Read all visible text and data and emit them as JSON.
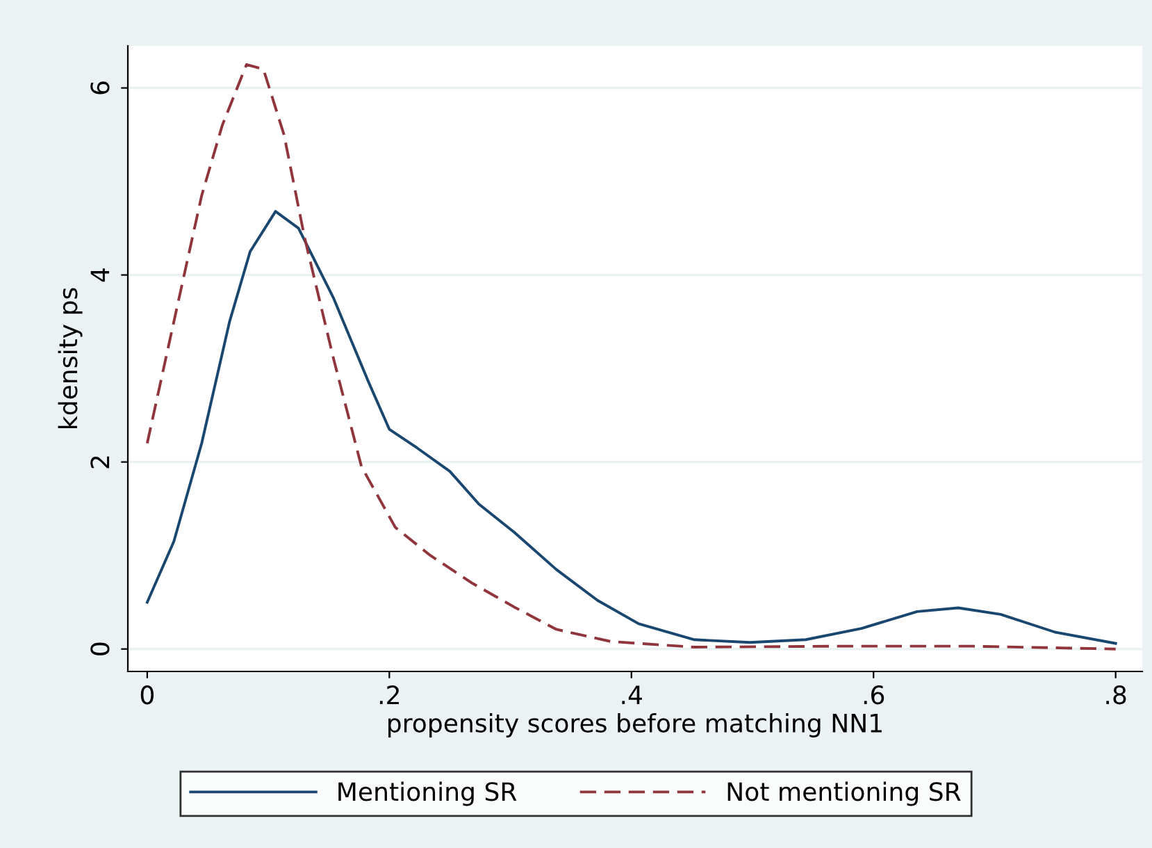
{
  "chart_data": {
    "type": "line",
    "xlabel": "propensity scores before matching NN1",
    "ylabel": "kdensity ps",
    "xlim": [
      -0.016,
      0.822
    ],
    "ylim": [
      -0.24,
      6.45
    ],
    "xticks": [
      {
        "value": 0,
        "label": "0"
      },
      {
        "value": 0.2,
        "label": ".2"
      },
      {
        "value": 0.4,
        "label": ".4"
      },
      {
        "value": 0.6,
        "label": ".6"
      },
      {
        "value": 0.8,
        "label": ".8"
      }
    ],
    "yticks": [
      0,
      2,
      4,
      6
    ],
    "grid": "y",
    "legend": "bottom",
    "marker": "none",
    "series": [
      {
        "name": "Mentioning SR",
        "color": "#1a476f",
        "line_style": "solid",
        "x": [
          0,
          0.022,
          0.045,
          0.068,
          0.085,
          0.106,
          0.125,
          0.154,
          0.183,
          0.2,
          0.223,
          0.25,
          0.274,
          0.303,
          0.338,
          0.372,
          0.406,
          0.452,
          0.498,
          0.544,
          0.59,
          0.636,
          0.67,
          0.705,
          0.75,
          0.8
        ],
        "values": [
          0.5,
          1.15,
          2.2,
          3.5,
          4.25,
          4.68,
          4.5,
          3.75,
          2.85,
          2.35,
          2.15,
          1.9,
          1.55,
          1.25,
          0.85,
          0.52,
          0.27,
          0.1,
          0.07,
          0.1,
          0.22,
          0.4,
          0.44,
          0.37,
          0.18,
          0.06
        ]
      },
      {
        "name": "Not mentioning SR",
        "color": "#90353b",
        "line_style": "dashed",
        "x": [
          0,
          0.022,
          0.045,
          0.062,
          0.082,
          0.096,
          0.113,
          0.13,
          0.154,
          0.177,
          0.205,
          0.234,
          0.269,
          0.303,
          0.338,
          0.383,
          0.452,
          0.567,
          0.682,
          0.8
        ],
        "values": [
          2.2,
          3.5,
          4.85,
          5.6,
          6.25,
          6.2,
          5.5,
          4.4,
          3.1,
          1.95,
          1.3,
          1.0,
          0.7,
          0.45,
          0.21,
          0.08,
          0.02,
          0.03,
          0.03,
          0.0
        ]
      }
    ]
  }
}
